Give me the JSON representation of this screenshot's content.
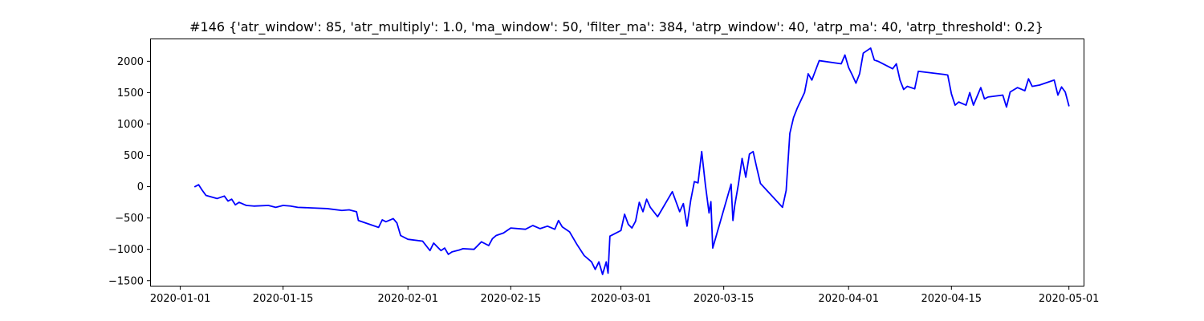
{
  "chart_data": {
    "type": "line",
    "title": "#146 {'atr_window': 85, 'atr_multiply': 1.0, 'ma_window': 50, 'filter_ma': 384, 'atrp_window': 40, 'atrp_ma': 40, 'atrp_threshold': 0.2}",
    "xlabel": "",
    "ylabel": "",
    "x_axis_type": "date",
    "xlim": [
      "2019-12-28",
      "2020-05-03"
    ],
    "ylim": [
      -1580,
      2350
    ],
    "x_ticks": [
      "2020-01-01",
      "2020-01-15",
      "2020-02-01",
      "2020-02-15",
      "2020-03-01",
      "2020-03-15",
      "2020-04-01",
      "2020-04-15",
      "2020-05-01"
    ],
    "x_tick_labels": [
      "2020-01-01",
      "2020-01-15",
      "2020-02-01",
      "2020-02-15",
      "2020-03-01",
      "2020-03-15",
      "2020-04-01",
      "2020-04-15",
      "2020-05-01"
    ],
    "y_ticks": [
      -1500,
      -1000,
      -500,
      0,
      500,
      1000,
      1500,
      2000
    ],
    "y_tick_labels": [
      "−1500",
      "−1000",
      "−500",
      "0",
      "500",
      "1000",
      "1500",
      "2000"
    ],
    "grid": false,
    "legend": "none",
    "series": [
      {
        "color": "#0000ff",
        "points": [
          [
            "2020-01-03",
            0
          ],
          [
            "2020-01-03 12:00",
            30
          ],
          [
            "2020-01-04",
            -60
          ],
          [
            "2020-01-04 12:00",
            -140
          ],
          [
            "2020-01-06",
            -190
          ],
          [
            "2020-01-07",
            -150
          ],
          [
            "2020-01-07 12:00",
            -230
          ],
          [
            "2020-01-08",
            -200
          ],
          [
            "2020-01-08 12:00",
            -290
          ],
          [
            "2020-01-09",
            -250
          ],
          [
            "2020-01-10",
            -300
          ],
          [
            "2020-01-11",
            -310
          ],
          [
            "2020-01-13",
            -300
          ],
          [
            "2020-01-14",
            -330
          ],
          [
            "2020-01-15",
            -300
          ],
          [
            "2020-01-16",
            -310
          ],
          [
            "2020-01-17",
            -330
          ],
          [
            "2020-01-19",
            -340
          ],
          [
            "2020-01-21",
            -350
          ],
          [
            "2020-01-23",
            -380
          ],
          [
            "2020-01-24",
            -370
          ],
          [
            "2020-01-25",
            -400
          ],
          [
            "2020-01-25 06:00",
            -540
          ],
          [
            "2020-01-28",
            -650
          ],
          [
            "2020-01-28 12:00",
            -530
          ],
          [
            "2020-01-29",
            -560
          ],
          [
            "2020-01-30",
            -510
          ],
          [
            "2020-01-30 12:00",
            -580
          ],
          [
            "2020-01-31",
            -780
          ],
          [
            "2020-02-01",
            -840
          ],
          [
            "2020-02-03",
            -870
          ],
          [
            "2020-02-04",
            -1020
          ],
          [
            "2020-02-04 12:00",
            -900
          ],
          [
            "2020-02-05",
            -960
          ],
          [
            "2020-02-05 12:00",
            -1020
          ],
          [
            "2020-02-06",
            -980
          ],
          [
            "2020-02-06 12:00",
            -1080
          ],
          [
            "2020-02-07",
            -1040
          ],
          [
            "2020-02-08",
            -1010
          ],
          [
            "2020-02-08 12:00",
            -990
          ],
          [
            "2020-02-10",
            -1000
          ],
          [
            "2020-02-11",
            -880
          ],
          [
            "2020-02-12",
            -940
          ],
          [
            "2020-02-12 12:00",
            -830
          ],
          [
            "2020-02-13",
            -780
          ],
          [
            "2020-02-14",
            -740
          ],
          [
            "2020-02-15",
            -660
          ],
          [
            "2020-02-17",
            -680
          ],
          [
            "2020-02-18",
            -620
          ],
          [
            "2020-02-19",
            -670
          ],
          [
            "2020-02-20",
            -630
          ],
          [
            "2020-02-21",
            -680
          ],
          [
            "2020-02-21 12:00",
            -540
          ],
          [
            "2020-02-22",
            -640
          ],
          [
            "2020-02-23",
            -720
          ],
          [
            "2020-02-24",
            -920
          ],
          [
            "2020-02-25",
            -1100
          ],
          [
            "2020-02-26",
            -1200
          ],
          [
            "2020-02-26 12:00",
            -1320
          ],
          [
            "2020-02-27",
            -1200
          ],
          [
            "2020-02-27 12:00",
            -1400
          ],
          [
            "2020-02-28",
            -1200
          ],
          [
            "2020-02-28 06:00",
            -1380
          ],
          [
            "2020-02-28 12:00",
            -790
          ],
          [
            "2020-03-01",
            -700
          ],
          [
            "2020-03-01 12:00",
            -440
          ],
          [
            "2020-03-02",
            -600
          ],
          [
            "2020-03-02 12:00",
            -660
          ],
          [
            "2020-03-03",
            -550
          ],
          [
            "2020-03-03 12:00",
            -250
          ],
          [
            "2020-03-04",
            -400
          ],
          [
            "2020-03-04 12:00",
            -200
          ],
          [
            "2020-03-05",
            -330
          ],
          [
            "2020-03-06",
            -480
          ],
          [
            "2020-03-06 12:00",
            -380
          ],
          [
            "2020-03-08",
            -80
          ],
          [
            "2020-03-09",
            -400
          ],
          [
            "2020-03-09 12:00",
            -270
          ],
          [
            "2020-03-10",
            -630
          ],
          [
            "2020-03-10 12:00",
            -220
          ],
          [
            "2020-03-11",
            80
          ],
          [
            "2020-03-11 12:00",
            60
          ],
          [
            "2020-03-12",
            560
          ],
          [
            "2020-03-12 12:00",
            30
          ],
          [
            "2020-03-13",
            -420
          ],
          [
            "2020-03-13 06:00",
            -240
          ],
          [
            "2020-03-13 12:00",
            -980
          ],
          [
            "2020-03-16",
            40
          ],
          [
            "2020-03-16 06:00",
            -540
          ],
          [
            "2020-03-16 12:00",
            -300
          ],
          [
            "2020-03-17",
            40
          ],
          [
            "2020-03-17 12:00",
            450
          ],
          [
            "2020-03-18",
            150
          ],
          [
            "2020-03-18 12:00",
            520
          ],
          [
            "2020-03-19",
            560
          ],
          [
            "2020-03-19 12:00",
            300
          ],
          [
            "2020-03-20",
            50
          ],
          [
            "2020-03-23",
            -330
          ],
          [
            "2020-03-23 12:00",
            -60
          ],
          [
            "2020-03-24",
            850
          ],
          [
            "2020-03-24 12:00",
            1100
          ],
          [
            "2020-03-25",
            1250
          ],
          [
            "2020-03-26",
            1500
          ],
          [
            "2020-03-26 12:00",
            1800
          ],
          [
            "2020-03-27",
            1700
          ],
          [
            "2020-03-28",
            2010
          ],
          [
            "2020-03-31",
            1960
          ],
          [
            "2020-03-31 12:00",
            2100
          ],
          [
            "2020-04-01",
            1900
          ],
          [
            "2020-04-01 12:00",
            1780
          ],
          [
            "2020-04-02",
            1650
          ],
          [
            "2020-04-02 12:00",
            1800
          ],
          [
            "2020-04-03",
            2130
          ],
          [
            "2020-04-04",
            2210
          ],
          [
            "2020-04-04 12:00",
            2020
          ],
          [
            "2020-04-05",
            2000
          ],
          [
            "2020-04-07",
            1880
          ],
          [
            "2020-04-07 12:00",
            1960
          ],
          [
            "2020-04-08",
            1700
          ],
          [
            "2020-04-08 12:00",
            1550
          ],
          [
            "2020-04-09",
            1600
          ],
          [
            "2020-04-10",
            1560
          ],
          [
            "2020-04-10 12:00",
            1840
          ],
          [
            "2020-04-14",
            1790
          ],
          [
            "2020-04-14 12:00",
            1780
          ],
          [
            "2020-04-15",
            1480
          ],
          [
            "2020-04-15 12:00",
            1300
          ],
          [
            "2020-04-16",
            1350
          ],
          [
            "2020-04-17",
            1300
          ],
          [
            "2020-04-17 12:00",
            1500
          ],
          [
            "2020-04-18",
            1300
          ],
          [
            "2020-04-19",
            1580
          ],
          [
            "2020-04-19 12:00",
            1400
          ],
          [
            "2020-04-20",
            1430
          ],
          [
            "2020-04-22",
            1460
          ],
          [
            "2020-04-22 12:00",
            1270
          ],
          [
            "2020-04-23",
            1510
          ],
          [
            "2020-04-24",
            1580
          ],
          [
            "2020-04-25",
            1530
          ],
          [
            "2020-04-25 12:00",
            1720
          ],
          [
            "2020-04-26",
            1600
          ],
          [
            "2020-04-27",
            1620
          ],
          [
            "2020-04-29",
            1700
          ],
          [
            "2020-04-29 12:00",
            1460
          ],
          [
            "2020-04-30",
            1590
          ],
          [
            "2020-04-30 12:00",
            1510
          ],
          [
            "2020-05-01",
            1290
          ]
        ]
      }
    ]
  }
}
